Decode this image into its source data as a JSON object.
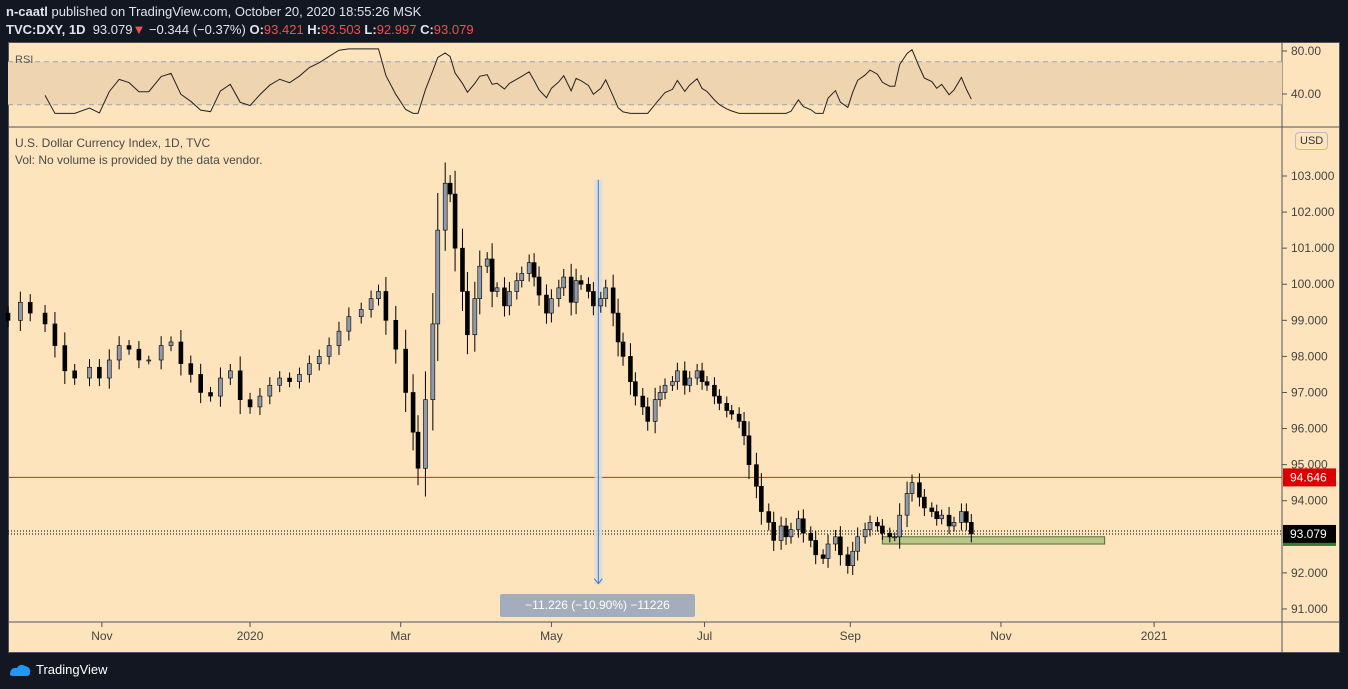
{
  "header": {
    "author": "n-caatl",
    "published": "published on TradingView.com, October 20, 2020 18:55:26 MSK",
    "symbol": "TVC:DXY, 1D",
    "last": "93.079",
    "change": "−0.344 (−0.37%)",
    "o_label": "O:",
    "o": "93.421",
    "h_label": "H:",
    "h": "93.503",
    "l_label": "L:",
    "l": "92.997",
    "c_label": "C:",
    "c": "93.079"
  },
  "pane": {
    "title": "U.S. Dollar Currency Index, 1D, TVC",
    "vol": "Vol: No volume is provided by the data vendor.",
    "rsi_label": "RSI",
    "currency": "USD"
  },
  "measure": {
    "label": "−11.226 (−10.90%) −11226",
    "from": 102.9,
    "to": 91.7,
    "day": 239
  },
  "footer": {
    "brand": "TradingView"
  },
  "colors": {
    "bg": "#fde4bc",
    "up": "#8f99aa",
    "down": "#000000",
    "resistance": "#e21e1e",
    "zone": "#b9c78a"
  },
  "chart_data": {
    "type": "candlestick",
    "title": "U.S. Dollar Currency Index, 1D, TVC",
    "xlabel": "",
    "ylabel": "",
    "ylim": [
      90.6,
      104.3
    ],
    "yticks": [
      "103.000",
      "102.000",
      "101.000",
      "100.000",
      "99.000",
      "98.000",
      "97.000",
      "96.000",
      "95.000",
      "94.000",
      "92.000",
      "91.000"
    ],
    "ytick_values": [
      103,
      102,
      101,
      100,
      99,
      98,
      97,
      96,
      95,
      94,
      92,
      91
    ],
    "xticks": [
      {
        "label": "Nov",
        "day": 38
      },
      {
        "label": "2020",
        "day": 98
      },
      {
        "label": "Mar",
        "day": 159
      },
      {
        "label": "May",
        "day": 220
      },
      {
        "label": "Jul",
        "day": 282
      },
      {
        "label": "Sep",
        "day": 341
      },
      {
        "label": "Nov",
        "day": 402
      },
      {
        "label": "2021",
        "day": 464
      }
    ],
    "rsi": {
      "yticks": [
        "80.00",
        "40.00"
      ],
      "ytick_values": [
        80,
        40
      ],
      "band": [
        30,
        70
      ]
    },
    "levels": {
      "resistance": {
        "value": 94.646,
        "label": "94.646"
      },
      "last": {
        "value": 93.079,
        "label": "93.079"
      },
      "zone": {
        "low": 92.8,
        "high": 93.0,
        "from_day": 354,
        "to_day": 444
      }
    },
    "closes": [
      [
        0,
        99.0
      ],
      [
        5,
        99.5
      ],
      [
        9,
        99.2
      ],
      [
        15,
        98.9
      ],
      [
        19,
        98.3
      ],
      [
        23,
        97.6
      ],
      [
        27,
        97.4
      ],
      [
        33,
        97.7
      ],
      [
        37,
        97.4
      ],
      [
        41,
        97.9
      ],
      [
        45,
        98.3
      ],
      [
        49,
        98.2
      ],
      [
        53,
        97.9
      ],
      [
        57,
        97.9
      ],
      [
        62,
        98.3
      ],
      [
        66,
        98.4
      ],
      [
        70,
        97.8
      ],
      [
        74,
        97.5
      ],
      [
        78,
        97.0
      ],
      [
        82,
        96.9
      ],
      [
        86,
        97.4
      ],
      [
        90,
        97.6
      ],
      [
        94,
        96.8
      ],
      [
        98,
        96.6
      ],
      [
        102,
        96.9
      ],
      [
        106,
        97.2
      ],
      [
        110,
        97.4
      ],
      [
        114,
        97.3
      ],
      [
        118,
        97.5
      ],
      [
        122,
        97.8
      ],
      [
        126,
        98.0
      ],
      [
        130,
        98.3
      ],
      [
        134,
        98.7
      ],
      [
        138,
        99.1
      ],
      [
        143,
        99.3
      ],
      [
        147,
        99.6
      ],
      [
        150,
        99.8
      ],
      [
        153,
        99.0
      ],
      [
        157,
        98.2
      ],
      [
        161,
        97.0
      ],
      [
        164,
        95.9
      ],
      [
        166,
        94.9
      ],
      [
        169,
        96.8
      ],
      [
        172,
        98.9
      ],
      [
        174,
        101.5
      ],
      [
        177,
        102.8
      ],
      [
        179,
        102.5
      ],
      [
        181,
        101.0
      ],
      [
        184,
        99.8
      ],
      [
        186,
        98.6
      ],
      [
        189,
        99.6
      ],
      [
        191,
        100.5
      ],
      [
        194,
        100.7
      ],
      [
        196,
        99.8
      ],
      [
        198,
        99.9
      ],
      [
        201,
        99.4
      ],
      [
        203,
        99.8
      ],
      [
        206,
        100.1
      ],
      [
        208,
        100.3
      ],
      [
        211,
        100.6
      ],
      [
        213,
        100.2
      ],
      [
        215,
        99.7
      ],
      [
        218,
        99.2
      ],
      [
        220,
        99.6
      ],
      [
        223,
        99.9
      ],
      [
        225,
        100.2
      ],
      [
        228,
        99.5
      ],
      [
        230,
        100.1
      ],
      [
        232,
        100.0
      ],
      [
        235,
        99.8
      ],
      [
        237,
        99.4
      ],
      [
        240,
        99.6
      ],
      [
        242,
        99.9
      ],
      [
        245,
        99.2
      ],
      [
        247,
        98.4
      ],
      [
        249,
        98.0
      ],
      [
        252,
        97.3
      ],
      [
        254,
        96.9
      ],
      [
        257,
        96.6
      ],
      [
        259,
        96.2
      ],
      [
        262,
        96.8
      ],
      [
        264,
        97.0
      ],
      [
        266,
        97.2
      ],
      [
        269,
        97.3
      ],
      [
        271,
        97.6
      ],
      [
        274,
        97.2
      ],
      [
        276,
        97.4
      ],
      [
        279,
        97.6
      ],
      [
        281,
        97.3
      ],
      [
        283,
        97.2
      ],
      [
        286,
        96.9
      ],
      [
        288,
        96.7
      ],
      [
        291,
        96.5
      ],
      [
        293,
        96.4
      ],
      [
        296,
        96.2
      ],
      [
        298,
        95.8
      ],
      [
        300,
        95.0
      ],
      [
        303,
        94.4
      ],
      [
        305,
        93.7
      ],
      [
        308,
        93.4
      ],
      [
        310,
        92.9
      ],
      [
        313,
        93.3
      ],
      [
        315,
        93.0
      ],
      [
        317,
        93.2
      ],
      [
        320,
        93.5
      ],
      [
        322,
        93.1
      ],
      [
        325,
        92.9
      ],
      [
        327,
        92.5
      ],
      [
        330,
        92.4
      ],
      [
        332,
        92.8
      ],
      [
        335,
        93.0
      ],
      [
        337,
        92.5
      ],
      [
        340,
        92.2
      ],
      [
        342,
        92.6
      ],
      [
        344,
        93.0
      ],
      [
        347,
        93.2
      ],
      [
        349,
        93.4
      ],
      [
        352,
        93.3
      ],
      [
        354,
        93.1
      ],
      [
        357,
        93.0
      ],
      [
        359,
        93.0
      ],
      [
        361,
        93.6
      ],
      [
        364,
        94.2
      ],
      [
        366,
        94.5
      ],
      [
        369,
        94.1
      ],
      [
        371,
        93.8
      ],
      [
        374,
        93.7
      ],
      [
        376,
        93.5
      ],
      [
        378,
        93.6
      ],
      [
        381,
        93.3
      ],
      [
        383,
        93.4
      ],
      [
        386,
        93.7
      ],
      [
        388,
        93.4
      ],
      [
        390,
        93.079
      ]
    ]
  }
}
